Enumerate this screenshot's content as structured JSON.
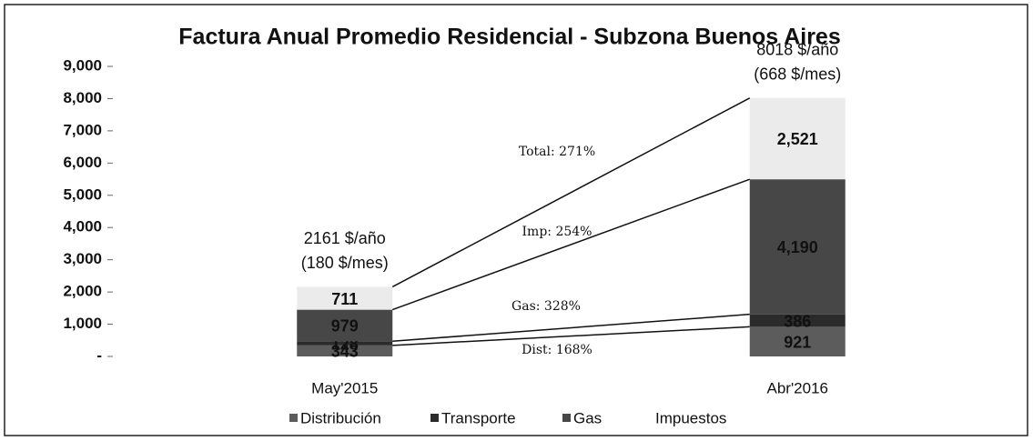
{
  "chart_data": {
    "type": "stacked_bar",
    "title": "Factura Anual Promedio Residencial - Subzona Buenos Aires",
    "categories": [
      "May'2015",
      "Abr'2016"
    ],
    "series": [
      {
        "name": "Distribución",
        "color": "#5c5c5c",
        "values": [
          343,
          921
        ],
        "value_labels": [
          "343",
          "921"
        ]
      },
      {
        "name": "Transporte",
        "color": "#2b2b2b",
        "values": [
          128,
          386
        ],
        "value_labels": [
          "128",
          "386"
        ]
      },
      {
        "name": "Gas",
        "color": "#474747",
        "values": [
          979,
          4190
        ],
        "value_labels": [
          "979",
          "4,190"
        ]
      },
      {
        "name": "Impuestos",
        "color": "#ebebeb",
        "values": [
          711,
          2521
        ],
        "value_labels": [
          "711",
          "2,521"
        ]
      }
    ],
    "total_labels": [
      [
        "2161 $/año",
        "(180 $/mes)"
      ],
      [
        "8018 $/año",
        "(668 $/mes)"
      ]
    ],
    "growth_labels": [
      "Dist: 168%",
      "Gas: 328%",
      "Imp: 254%",
      "Total: 271%"
    ],
    "ylim": [
      0,
      9000
    ],
    "yticks": [
      {
        "value": 0,
        "label": "-"
      },
      {
        "value": 1000,
        "label": "1,000"
      },
      {
        "value": 2000,
        "label": "2,000"
      },
      {
        "value": 3000,
        "label": "3,000"
      },
      {
        "value": 4000,
        "label": "4,000"
      },
      {
        "value": 5000,
        "label": "5,000"
      },
      {
        "value": 6000,
        "label": "6,000"
      },
      {
        "value": 7000,
        "label": "7,000"
      },
      {
        "value": 8000,
        "label": "8,000"
      },
      {
        "value": 9000,
        "label": "9,000"
      }
    ],
    "legend": "bottom"
  }
}
